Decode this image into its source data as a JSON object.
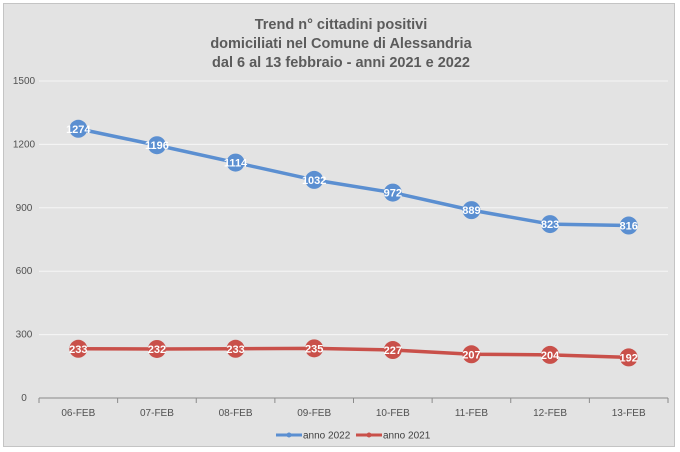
{
  "chart_data": {
    "type": "line",
    "title_lines": [
      "Trend n° cittadini positivi",
      "domiciliati nel Comune di Alessandria",
      "dal 6 al 13 febbraio - anni 2021 e 2022"
    ],
    "xlabel": "",
    "ylabel": "",
    "categories": [
      "06-FEB",
      "07-FEB",
      "08-FEB",
      "09-FEB",
      "10-FEB",
      "11-FEB",
      "12-FEB",
      "13-FEB"
    ],
    "yticks": [
      "0",
      "300",
      "600",
      "900",
      "1200",
      "1500"
    ],
    "ylim": [
      0,
      1500
    ],
    "grid": true,
    "legend_position": "bottom",
    "series": [
      {
        "name": "anno 2022",
        "color": "#5b8fd1",
        "values": [
          1274,
          1196,
          1114,
          1032,
          972,
          889,
          823,
          816
        ],
        "labels": [
          "1274",
          "1196",
          "1114",
          "1032",
          "972",
          "889",
          "823",
          "816"
        ]
      },
      {
        "name": "anno 2021",
        "color": "#c9504a",
        "values": [
          233,
          232,
          233,
          235,
          227,
          207,
          204,
          192
        ],
        "labels": [
          "233",
          "232",
          "233",
          "235",
          "227",
          "207",
          "204",
          "192"
        ]
      }
    ]
  }
}
